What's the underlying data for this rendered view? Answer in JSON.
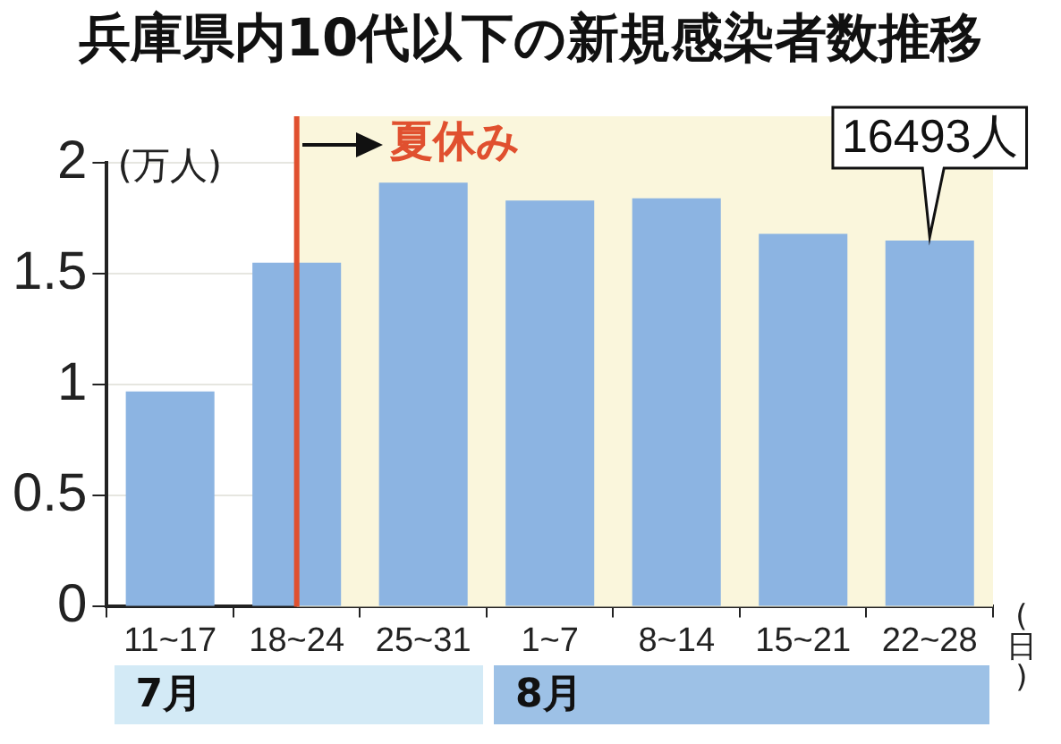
{
  "chart_data": {
    "type": "bar",
    "title": "兵庫県内10代以下の新規感染者数推移",
    "ylabel": "(万人)",
    "xlabel": "(日)",
    "categories": [
      "11~17",
      "18~24",
      "25~31",
      "1~7",
      "8~14",
      "15~21",
      "22~28"
    ],
    "values": [
      0.97,
      1.55,
      1.91,
      1.83,
      1.84,
      1.68,
      1.6493
    ],
    "color": "#8cb4e2",
    "ylim": [
      0,
      2
    ],
    "yticks": [
      0,
      0.5,
      1,
      1.5,
      2
    ],
    "grid": "y",
    "legend": false,
    "ref_lines": [
      {
        "axis": "x",
        "value": "18~24",
        "color": "#e0502f"
      }
    ],
    "bands": [
      {
        "axis": "x",
        "from": "18~24",
        "to": "22~28",
        "label": "夏休み",
        "color": "#faf6dc"
      }
    ],
    "annotations": [
      {
        "text": "16493人",
        "x": "22~28",
        "y": 1.6493
      },
      "7月",
      "8月"
    ]
  }
}
